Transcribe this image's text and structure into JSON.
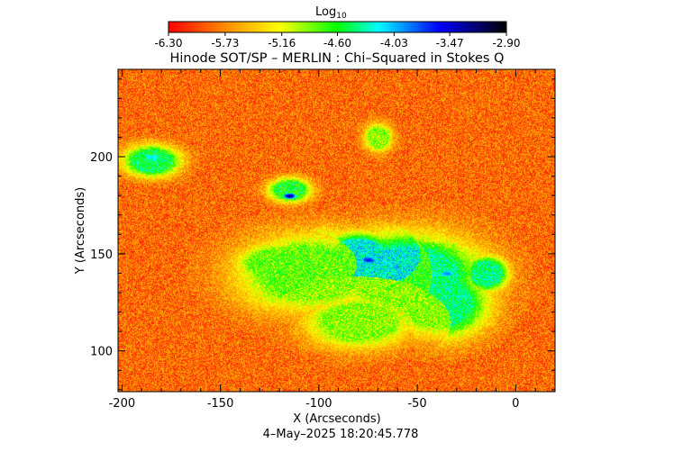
{
  "chart_data": {
    "type": "heatmap",
    "title": "Hinode SOT/SP – MERLIN : Chi–Squared in Stokes Q",
    "xlabel": "X (Arcseconds)",
    "ylabel": "Y (Arcseconds)",
    "xlim": [
      -202,
      20
    ],
    "ylim": [
      79,
      245
    ],
    "xticks": [
      -200,
      -150,
      -100,
      -50,
      0
    ],
    "yticks": [
      100,
      150,
      200
    ],
    "xtick_labels": [
      "-200",
      "-150",
      "-100",
      "-50",
      "0"
    ],
    "ytick_labels": [
      "100",
      "150",
      "200"
    ],
    "colorbar": {
      "label": "Log",
      "label_sub": "10",
      "ticks": [
        -6.3,
        -5.73,
        -5.16,
        -4.6,
        -4.03,
        -3.47,
        -2.9
      ],
      "tick_labels": [
        "-6.30",
        "-5.73",
        "-5.16",
        "-4.60",
        "-4.03",
        "-3.47",
        "-2.90"
      ],
      "range": [
        -6.3,
        -2.9
      ],
      "colors": [
        "#ff0000",
        "#ff8c00",
        "#ffff00",
        "#00ff00",
        "#00ffff",
        "#0000ff",
        "#000000"
      ]
    },
    "background_value": -5.85,
    "active_regions": [
      {
        "x": -55,
        "y": 138,
        "rx": 42,
        "ry": 25,
        "value": -4.6
      },
      {
        "x": -40,
        "y": 125,
        "rx": 28,
        "ry": 20,
        "value": -4.4
      },
      {
        "x": -105,
        "y": 140,
        "rx": 40,
        "ry": 22,
        "value": -4.7
      },
      {
        "x": -80,
        "y": 150,
        "rx": 20,
        "ry": 12,
        "value": -4.2
      },
      {
        "x": -120,
        "y": 145,
        "rx": 25,
        "ry": 12,
        "value": -4.8
      },
      {
        "x": -80,
        "y": 115,
        "rx": 30,
        "ry": 15,
        "value": -4.9
      },
      {
        "x": -185,
        "y": 198,
        "rx": 16,
        "ry": 9,
        "value": -4.5
      },
      {
        "x": -115,
        "y": 183,
        "rx": 12,
        "ry": 7,
        "value": -4.6
      },
      {
        "x": -70,
        "y": 210,
        "rx": 8,
        "ry": 8,
        "value": -4.9
      },
      {
        "x": -15,
        "y": 140,
        "rx": 12,
        "ry": 10,
        "value": -4.4
      }
    ],
    "dark_spots": [
      {
        "x": -115,
        "y": 180,
        "value": -3.2
      },
      {
        "x": -75,
        "y": 147,
        "value": -3.6
      },
      {
        "x": -35,
        "y": 140,
        "value": -3.9
      },
      {
        "x": -185,
        "y": 200,
        "value": -4.1
      }
    ]
  },
  "footer": {
    "timestamp": "4–May–2025 18:20:45.778"
  }
}
